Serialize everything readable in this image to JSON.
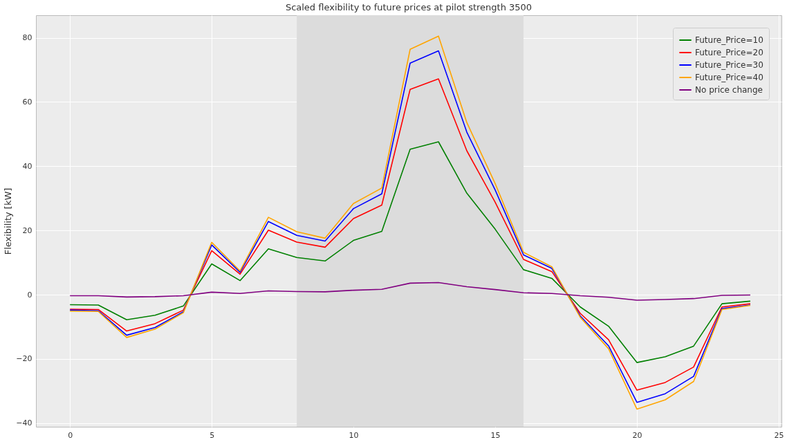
{
  "chart_data": {
    "type": "line",
    "title": "Scaled flexibility to future prices at pilot strength 3500",
    "ylabel": "Flexibility [kW]",
    "x": [
      0,
      1,
      2,
      3,
      4,
      5,
      6,
      7,
      8,
      9,
      10,
      11,
      12,
      13,
      14,
      15,
      16,
      17,
      18,
      19,
      20,
      21,
      22,
      23,
      24
    ],
    "series": [
      {
        "name": "Future_Price=10",
        "color": "#008000",
        "values": [
          -3.1,
          -3.2,
          -7.8,
          -6.4,
          -3.5,
          9.6,
          4.4,
          14.3,
          11.6,
          10.5,
          16.9,
          19.7,
          45.3,
          47.6,
          31.6,
          20.4,
          7.8,
          5.1,
          -3.8,
          -9.8,
          -21.1,
          -19.3,
          -16.0,
          -2.8,
          -2.0
        ]
      },
      {
        "name": "Future_Price=20",
        "color": "#ff0000",
        "values": [
          -4.5,
          -4.6,
          -11.3,
          -9.0,
          -4.8,
          13.7,
          6.4,
          20.1,
          16.4,
          14.8,
          23.7,
          27.9,
          63.9,
          67.2,
          44.8,
          28.8,
          11.0,
          7.2,
          -5.8,
          -14.0,
          -29.7,
          -27.3,
          -22.5,
          -3.8,
          -2.8
        ]
      },
      {
        "name": "Future_Price=30",
        "color": "#0000ff",
        "values": [
          -4.8,
          -5.0,
          -12.6,
          -10.2,
          -5.3,
          15.5,
          7.0,
          22.8,
          18.5,
          16.7,
          26.8,
          31.4,
          72.1,
          75.9,
          50.6,
          32.6,
          12.4,
          8.2,
          -6.6,
          -15.9,
          -33.5,
          -30.8,
          -25.4,
          -4.3,
          -3.2
        ]
      },
      {
        "name": "Future_Price=40",
        "color": "#ffa500",
        "values": [
          -5.1,
          -5.2,
          -13.3,
          -10.7,
          -5.6,
          16.3,
          7.4,
          24.1,
          19.6,
          17.6,
          28.4,
          33.2,
          76.4,
          80.5,
          53.6,
          34.6,
          13.2,
          8.7,
          -7.0,
          -16.8,
          -35.6,
          -32.7,
          -27.0,
          -4.6,
          -3.3
        ]
      },
      {
        "name": "No price change",
        "color": "#800080",
        "values": [
          -0.3,
          -0.3,
          -0.7,
          -0.6,
          -0.3,
          0.8,
          0.4,
          1.2,
          1.0,
          0.9,
          1.4,
          1.7,
          3.6,
          3.8,
          2.5,
          1.6,
          0.6,
          0.4,
          -0.3,
          -0.8,
          -1.7,
          -1.5,
          -1.2,
          -0.2,
          -0.1
        ]
      }
    ],
    "xlim": [
      -1.2,
      25.1
    ],
    "ylim": [
      -41.1,
      87
    ],
    "xticks": [
      0,
      5,
      10,
      15,
      20,
      25
    ],
    "yticks": [
      -40,
      -20,
      0,
      20,
      40,
      60,
      80
    ],
    "bands": [
      {
        "axis": "x",
        "from": 8,
        "to": 16,
        "color": "#dcdcdc"
      }
    ],
    "grid": true,
    "legend": "top right",
    "marker": "none",
    "line_style": "solid"
  }
}
